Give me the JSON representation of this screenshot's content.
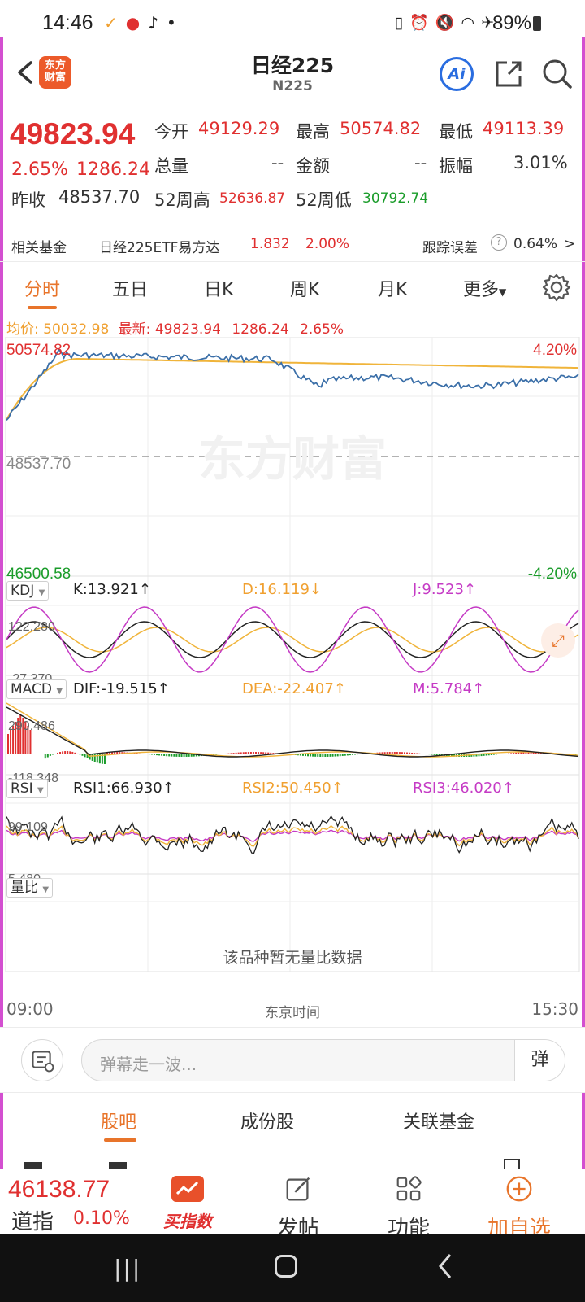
{
  "status_bar": {
    "time": "14:46",
    "battery": "89%"
  },
  "header": {
    "logo_text": "东方\n财富",
    "title": "日经225",
    "subtitle": "N225",
    "ai_label": "Ai"
  },
  "quote": {
    "last_price": "49823.94",
    "change_pct": "2.65%",
    "change": "1286.24",
    "open_label": "今开",
    "open_value": "49129.29",
    "high_label": "最高",
    "high_value": "50574.82",
    "low_label": "最低",
    "low_value": "49113.39",
    "volume_label": "总量",
    "volume_value": "--",
    "amount_label": "金额",
    "amount_value": "--",
    "amplitude_label": "振幅",
    "amplitude_value": "3.01%",
    "prev_close_label": "昨收",
    "prev_close_value": "48537.70",
    "wk52_high_label": "52周高",
    "wk52_high_value": "52636.87",
    "wk52_low_label": "52周低",
    "wk52_low_value": "30792.74"
  },
  "fund_row": {
    "label": "相关基金",
    "fund_name": "日经225ETF易方达",
    "fund_price": "1.832",
    "fund_pct": "2.00%",
    "tracking_label": "跟踪误差",
    "tracking_value": "0.64%"
  },
  "tabs": [
    "分时",
    "五日",
    "日K",
    "周K",
    "月K",
    "更多"
  ],
  "price_legend": {
    "avg_label": "均价:",
    "avg_value": "50032.98",
    "latest_label": "最新:",
    "latest_value": "49823.94",
    "latest_change": "1286.24",
    "latest_pct": "2.65%"
  },
  "price_axis": {
    "top_left": "50574.82",
    "top_right": "4.20%",
    "mid_left": "48537.70",
    "bottom_left": "46500.58",
    "bottom_right": "-4.20%",
    "watermark": "东方财富"
  },
  "kdj": {
    "name": "KDJ",
    "k": "K:13.921↑",
    "d": "D:16.119↓",
    "j": "J:9.523↑",
    "top": "122.280",
    "bottom": "-27.370"
  },
  "macd": {
    "name": "MACD",
    "dif": "DIF:-19.515↑",
    "dea": "DEA:-22.407↑",
    "m": "M:5.784↑",
    "top": "290.486",
    "bottom": "-118.348"
  },
  "rsi": {
    "name": "RSI",
    "rsi1": "RSI1:66.930↑",
    "rsi2": "RSI2:50.450↑",
    "rsi3": "RSI3:46.020↑",
    "top": "99.109",
    "bottom": "5.480"
  },
  "volume_ratio": {
    "name": "量比",
    "empty_text": "该品种暂无量比数据"
  },
  "time_axis": {
    "start": "09:00",
    "middle": "东京时间",
    "end": "15:30"
  },
  "comment_bar": {
    "placeholder": "弹幕走一波...",
    "danmu_btn": "弹"
  },
  "subtabs": [
    "股吧",
    "成份股",
    "关联基金"
  ],
  "bottom_bar": {
    "dow_value": "46138.77",
    "dow_label": "道指",
    "dow_pct": "0.10%",
    "buy_index": "买指数",
    "post": "发帖",
    "functions": "功能",
    "add_watch": "加自选"
  },
  "colors": {
    "up": "#e03030",
    "down": "#1a9c2a",
    "accent": "#e8742a",
    "price_line": "#3b6fa8",
    "avg_line": "#f0b43a",
    "magenta": "#c53bc5"
  }
}
